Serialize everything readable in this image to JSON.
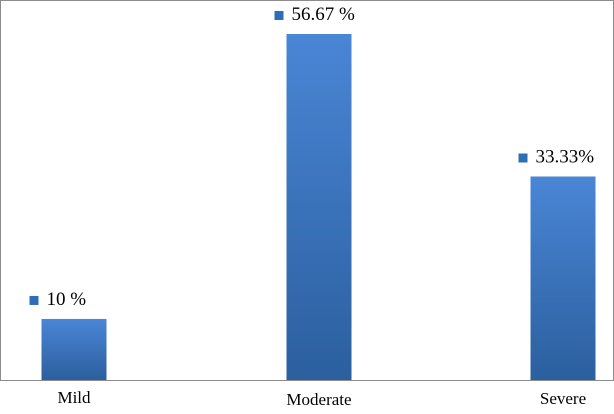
{
  "chart_data": {
    "type": "bar",
    "categories": [
      "Mild",
      "Moderate",
      "Severe"
    ],
    "values": [
      10,
      56.67,
      33.33
    ],
    "data_labels": [
      "10 %",
      "56.67 %",
      "33.33%"
    ],
    "title": "",
    "xlabel": "",
    "ylabel": "",
    "ylim": [
      0,
      56.67
    ],
    "grid": false,
    "legend": "none",
    "colors": {
      "bar_top": "#4A86D6",
      "bar_bottom": "#2B5F9E",
      "label_marker": "#2F6DB5",
      "border": "#8C8C8C",
      "text": "#000000"
    }
  }
}
